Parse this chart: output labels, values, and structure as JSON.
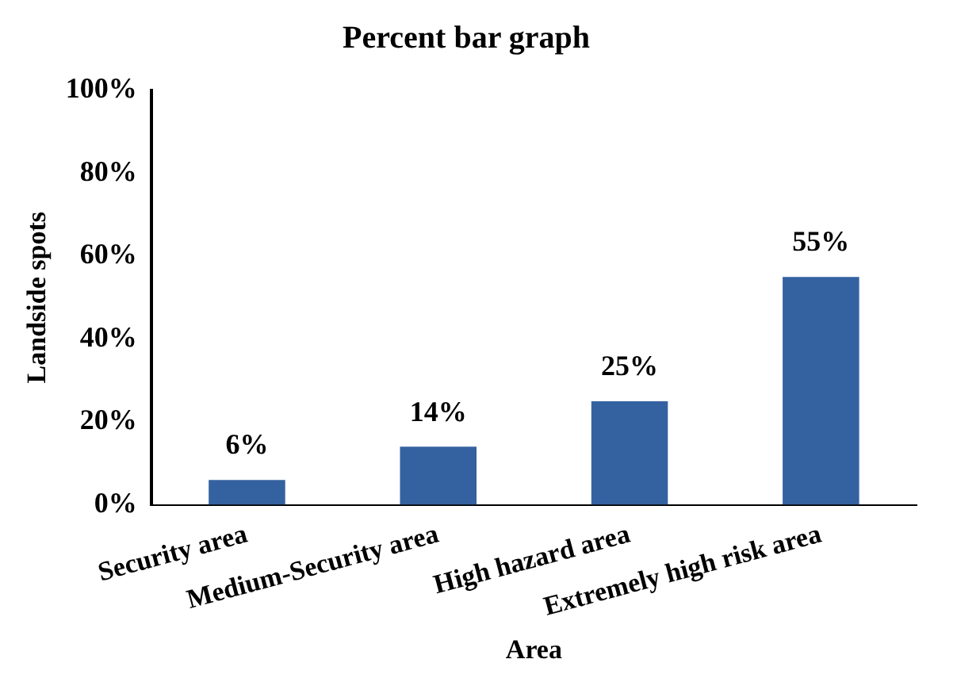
{
  "chart_data": {
    "type": "bar",
    "title": "Percent bar graph",
    "xlabel": "Area",
    "ylabel": "Landside spots",
    "categories": [
      "Security area",
      "Medium-Security area",
      "High hazard area",
      "Extremely high risk area"
    ],
    "values": [
      6,
      14,
      25,
      55
    ],
    "color": "#3462a0",
    "value_labels": [
      "6%",
      "14%",
      "25%",
      "55%"
    ],
    "ylim": [
      0,
      100
    ],
    "yticks": [
      {
        "value": 0,
        "label": "0%"
      },
      {
        "value": 20,
        "label": "20%"
      },
      {
        "value": 40,
        "label": "40%"
      },
      {
        "value": 60,
        "label": "60%"
      },
      {
        "value": 80,
        "label": "80%"
      },
      {
        "value": 100,
        "label": "100%"
      }
    ],
    "grid": false,
    "legend": false
  }
}
